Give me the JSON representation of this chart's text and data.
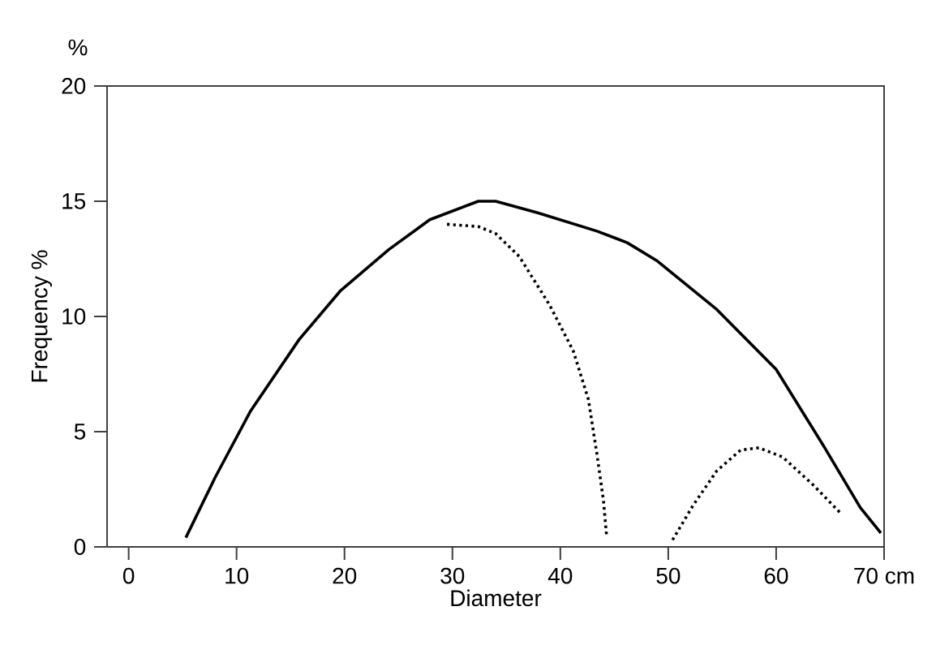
{
  "chart_data": {
    "type": "line",
    "xlabel": "Diameter",
    "ylabel": "Frequency   %",
    "annotations": [
      "%"
    ],
    "xlim": [
      -2,
      70
    ],
    "xticks": [
      0,
      10,
      20,
      30,
      40,
      50,
      60,
      {
        "value": 70,
        "label": "70 cm"
      }
    ],
    "ylim": [
      0,
      20
    ],
    "yticks": [
      0,
      5,
      10,
      15,
      20
    ],
    "grid": false,
    "marker": "none",
    "series": [
      {
        "color": "#000000",
        "line_style": "solid",
        "x": [
          5.3,
          8.0,
          11.3,
          15.8,
          19.6,
          24.1,
          27.9,
          32.4,
          34.0,
          37.9,
          43.4,
          46.2,
          49.0,
          54.5,
          60.0,
          64.5,
          67.8,
          69.7
        ],
        "values": [
          0.4,
          3.0,
          5.9,
          9.0,
          11.1,
          12.9,
          14.2,
          15.0,
          15.0,
          14.5,
          13.7,
          13.2,
          12.4,
          10.3,
          7.7,
          4.3,
          1.7,
          0.6
        ]
      },
      {
        "color": "#000000",
        "line_style": "dotted",
        "x": [
          29.5,
          32.4,
          34.0,
          36.2,
          39.0,
          41.2,
          42.6,
          43.4,
          44.0,
          44.3,
          47.0,
          50.4,
          52.3,
          54.5,
          56.7,
          58.4,
          60.6,
          63.4,
          66.1
        ],
        "values": [
          14.0,
          13.9,
          13.6,
          12.6,
          10.5,
          8.5,
          6.4,
          4.0,
          2.0,
          0.4,
          null,
          0.3,
          1.8,
          3.3,
          4.2,
          4.3,
          3.9,
          2.7,
          1.4
        ]
      }
    ]
  }
}
